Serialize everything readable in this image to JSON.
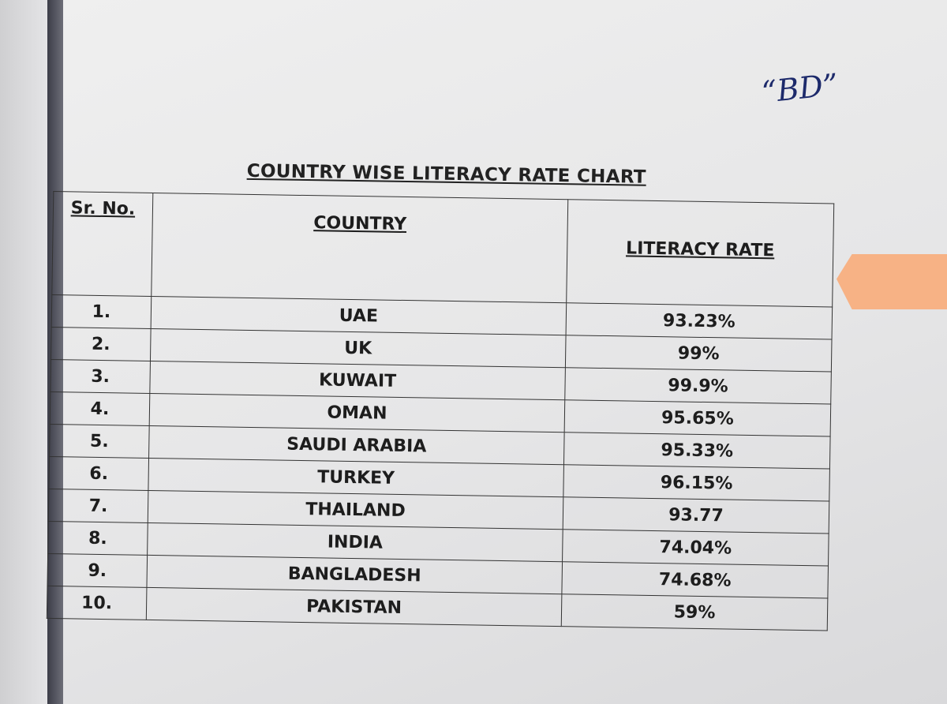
{
  "note": "“BD”",
  "title": "COUNTRY WISE LITERACY RATE CHART",
  "table": {
    "headers": [
      "Sr. No.",
      "COUNTRY",
      "LITERACY RATE"
    ],
    "rows": [
      [
        "1.",
        "UAE",
        "93.23%"
      ],
      [
        "2.",
        "UK",
        "99%"
      ],
      [
        "3.",
        "KUWAIT",
        "99.9%"
      ],
      [
        "4.",
        "OMAN",
        "95.65%"
      ],
      [
        "5.",
        "SAUDI ARABIA",
        "95.33%"
      ],
      [
        "6.",
        "TURKEY",
        "96.15%"
      ],
      [
        "7.",
        "THAILAND",
        "93.77"
      ],
      [
        "8.",
        "INDIA",
        "74.04%"
      ],
      [
        "9.",
        "BANGLADESH",
        "74.68%"
      ],
      [
        "10.",
        "PAKISTAN",
        "59%"
      ]
    ]
  }
}
